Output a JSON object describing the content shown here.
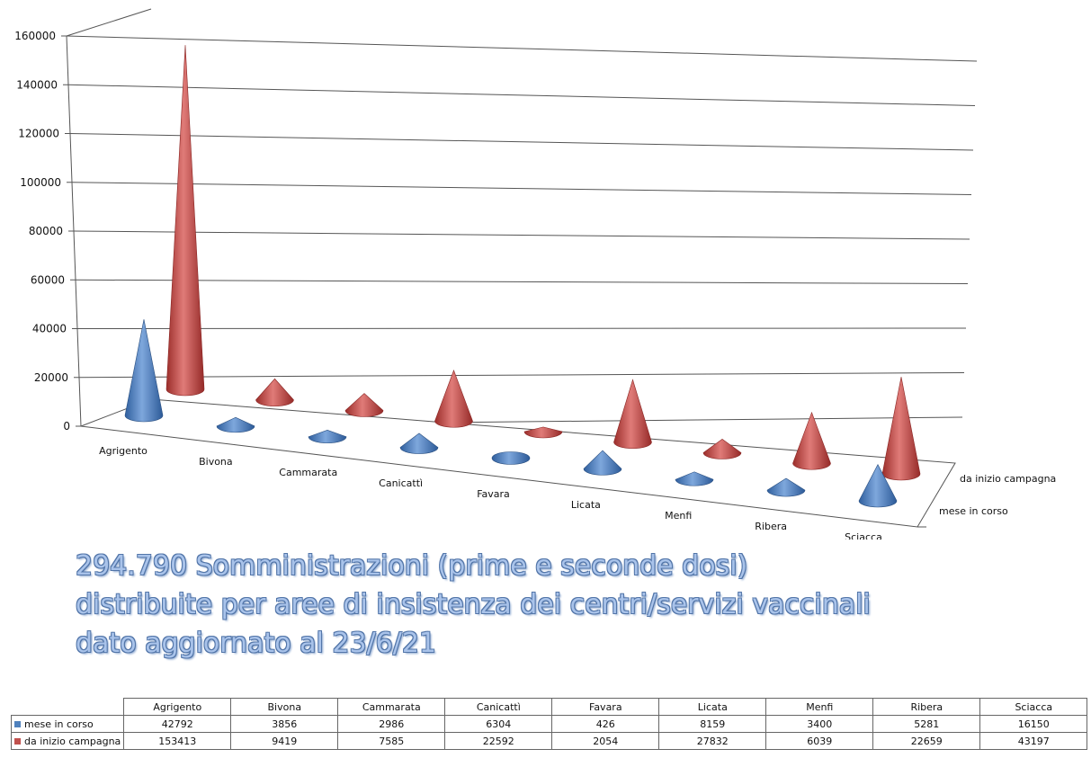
{
  "chart_data": {
    "type": "bar",
    "shape": "3d-cone",
    "categories": [
      "Agrigento",
      "Bivona",
      "Cammarata",
      "Canicattì",
      "Favara",
      "Licata",
      "Menfi",
      "Ribera",
      "Sciacca"
    ],
    "series": [
      {
        "name": "mese in corso",
        "color": "#4f81bd",
        "values": [
          42792,
          3856,
          2986,
          6304,
          426,
          8159,
          3400,
          5281,
          16150
        ]
      },
      {
        "name": "da inizio campagna",
        "color": "#c0504d",
        "values": [
          153413,
          9419,
          7585,
          22592,
          2054,
          27832,
          6039,
          22659,
          43197
        ]
      }
    ],
    "yticks": [
      "0",
      "20000",
      "40000",
      "60000",
      "80000",
      "100000",
      "120000",
      "140000",
      "160000"
    ],
    "ylim": [
      0,
      160000
    ],
    "grid": true,
    "legend": "right"
  },
  "caption": {
    "line1": "294.790 Somministrazioni  (prime e seconde dosi)",
    "line2": "distribuite  per aree di insistenza dei centri/servizi vaccinali",
    "line3": "dato aggiornato al 23/6/21"
  }
}
